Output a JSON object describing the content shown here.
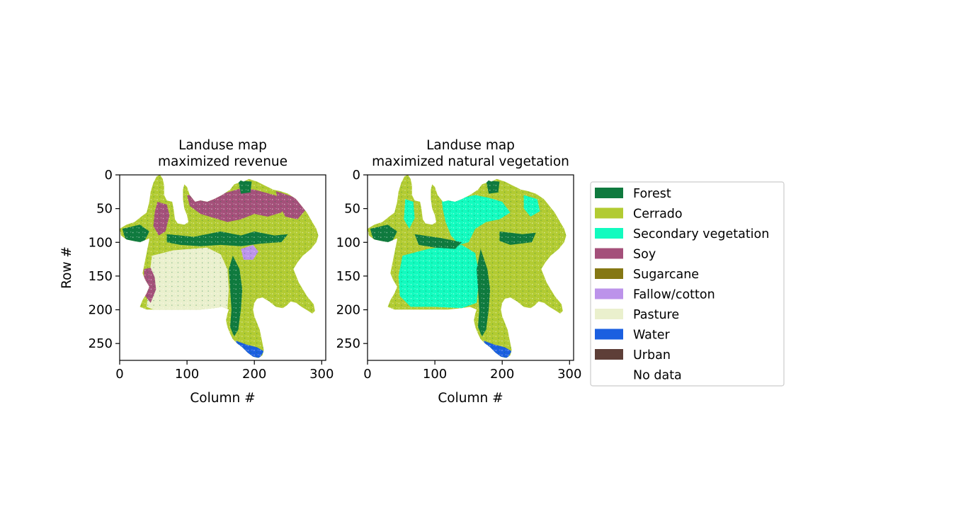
{
  "chart_data": [
    {
      "type": "heatmap",
      "title": "Landuse map\nmaximized revenue",
      "title_lines": [
        "Landuse map",
        "maximized revenue"
      ],
      "xlabel": "Column #",
      "ylabel": "Row #",
      "xlim": [
        0,
        306
      ],
      "ylim": [
        275,
        0
      ],
      "xticks": [
        0,
        100,
        200,
        300
      ],
      "yticks": [
        0,
        50,
        100,
        150,
        200,
        250
      ],
      "dominant_classes": [
        "Pasture",
        "Soy",
        "Cerrado",
        "Forest"
      ]
    },
    {
      "type": "heatmap",
      "title": "Landuse map\nmaximized natural vegetation",
      "title_lines": [
        "Landuse map",
        "maximized natural vegetation"
      ],
      "xlabel": "Column #",
      "ylabel": "",
      "xlim": [
        0,
        306
      ],
      "ylim": [
        275,
        0
      ],
      "xticks": [
        0,
        100,
        200,
        300
      ],
      "yticks": [
        0,
        50,
        100,
        150,
        200,
        250
      ],
      "dominant_classes": [
        "Secondary vegetation",
        "Cerrado",
        "Forest"
      ]
    }
  ],
  "legend": {
    "placement": "right",
    "items": [
      {
        "label": "Forest",
        "color": "#0f7a3e"
      },
      {
        "label": "Cerrado",
        "color": "#b2cb32"
      },
      {
        "label": "Secondary vegetation",
        "color": "#12fbbf"
      },
      {
        "label": "Soy",
        "color": "#a4507a"
      },
      {
        "label": "Sugarcane",
        "color": "#857714"
      },
      {
        "label": "Fallow/cotton",
        "color": "#bc93ea"
      },
      {
        "label": "Pasture",
        "color": "#eaf0cd"
      },
      {
        "label": "Water",
        "color": "#1b5fe0"
      },
      {
        "label": "Urban",
        "color": "#5e3f38"
      },
      {
        "label": "No data",
        "color": "#ffffff"
      }
    ]
  }
}
